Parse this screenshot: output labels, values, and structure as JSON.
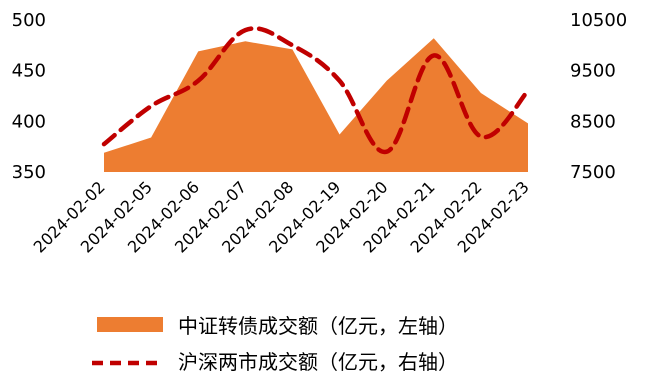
{
  "chart_data": {
    "type": "area",
    "categories": [
      "2024-02-02",
      "2024-02-05",
      "2024-02-06",
      "2024-02-07",
      "2024-02-08",
      "2024-02-19",
      "2024-02-20",
      "2024-02-21",
      "2024-02-22",
      "2024-02-23"
    ],
    "series": [
      {
        "name": "中证转债成交额（亿元，左轴）",
        "axis": "left",
        "style": "area",
        "color": "#ED7D31",
        "values": [
          369,
          384,
          469,
          479,
          471,
          387,
          440,
          482,
          428,
          398
        ]
      },
      {
        "name": "沪深两市成交额（亿元，右轴）",
        "axis": "right",
        "style": "dashed-line",
        "color": "#C00000",
        "values": [
          8050,
          8800,
          9300,
          10300,
          10000,
          9300,
          7900,
          9800,
          8200,
          9100
        ]
      }
    ],
    "y_left": {
      "min": 350,
      "max": 500,
      "ticks": [
        "350",
        "400",
        "450",
        "500"
      ]
    },
    "y_right": {
      "min": 7500,
      "max": 10500,
      "ticks": [
        "7500",
        "8500",
        "9500",
        "10500"
      ]
    },
    "x_tick_rotation": "-45",
    "legend_position": "bottom",
    "grid": false
  }
}
